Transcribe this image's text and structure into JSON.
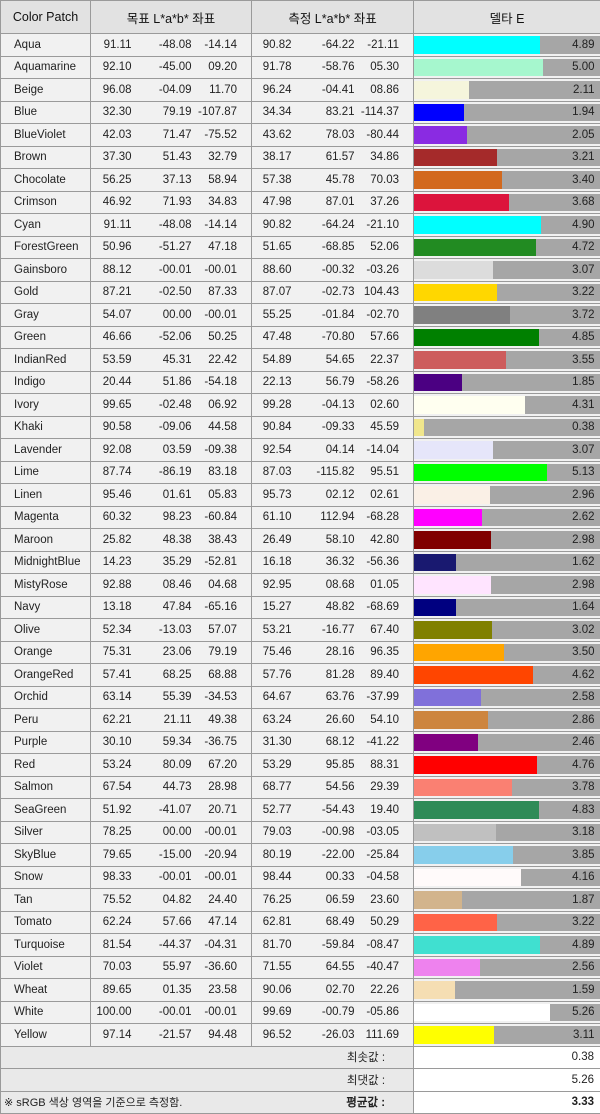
{
  "headers": {
    "patch": "Color Patch",
    "target": "목표 L*a*b* 좌표",
    "measured": "측정 L*a*b* 좌표",
    "delta": "델타 E"
  },
  "chart_data": {
    "type": "bar",
    "xlim": [
      0,
      5.5
    ],
    "rows": [
      {
        "name": "Aqua",
        "target": [
          "91.11",
          "-48.08",
          "-14.14"
        ],
        "measured": [
          "90.82",
          "-64.22",
          "-21.11"
        ],
        "delta": "4.89",
        "de": 4.89,
        "color": "#00FFFF"
      },
      {
        "name": "Aquamarine",
        "target": [
          "92.10",
          "-45.00",
          "09.20"
        ],
        "measured": [
          "91.78",
          "-58.76",
          "05.30"
        ],
        "delta": "5.00",
        "de": 5.0,
        "color": "#A6F7CE"
      },
      {
        "name": "Beige",
        "target": [
          "96.08",
          "-04.09",
          "11.70"
        ],
        "measured": [
          "96.24",
          "-04.41",
          "08.86"
        ],
        "delta": "2.11",
        "de": 2.11,
        "color": "#F5F5DC"
      },
      {
        "name": "Blue",
        "target": [
          "32.30",
          "79.19",
          "-107.87"
        ],
        "measured": [
          "34.34",
          "83.21",
          "-114.37"
        ],
        "delta": "1.94",
        "de": 1.94,
        "color": "#0000FF"
      },
      {
        "name": "BlueViolet",
        "target": [
          "42.03",
          "71.47",
          "-75.52"
        ],
        "measured": [
          "43.62",
          "78.03",
          "-80.44"
        ],
        "delta": "2.05",
        "de": 2.05,
        "color": "#8A2BE2"
      },
      {
        "name": "Brown",
        "target": [
          "37.30",
          "51.43",
          "32.79"
        ],
        "measured": [
          "38.17",
          "61.57",
          "34.86"
        ],
        "delta": "3.21",
        "de": 3.21,
        "color": "#A52A2A"
      },
      {
        "name": "Chocolate",
        "target": [
          "56.25",
          "37.13",
          "58.94"
        ],
        "measured": [
          "57.38",
          "45.78",
          "70.03"
        ],
        "delta": "3.40",
        "de": 3.4,
        "color": "#D2691E"
      },
      {
        "name": "Crimson",
        "target": [
          "46.92",
          "71.93",
          "34.83"
        ],
        "measured": [
          "47.98",
          "87.01",
          "37.26"
        ],
        "delta": "3.68",
        "de": 3.68,
        "color": "#DC143C"
      },
      {
        "name": "Cyan",
        "target": [
          "91.11",
          "-48.08",
          "-14.14"
        ],
        "measured": [
          "90.82",
          "-64.24",
          "-21.10"
        ],
        "delta": "4.90",
        "de": 4.9,
        "color": "#00FFFF"
      },
      {
        "name": "ForestGreen",
        "target": [
          "50.96",
          "-51.27",
          "47.18"
        ],
        "measured": [
          "51.65",
          "-68.85",
          "52.06"
        ],
        "delta": "4.72",
        "de": 4.72,
        "color": "#228B22"
      },
      {
        "name": "Gainsboro",
        "target": [
          "88.12",
          "-00.01",
          "-00.01"
        ],
        "measured": [
          "88.60",
          "-00.32",
          "-03.26"
        ],
        "delta": "3.07",
        "de": 3.07,
        "color": "#DCDCDC"
      },
      {
        "name": "Gold",
        "target": [
          "87.21",
          "-02.50",
          "87.33"
        ],
        "measured": [
          "87.07",
          "-02.73",
          "104.43"
        ],
        "delta": "3.22",
        "de": 3.22,
        "color": "#FFD700"
      },
      {
        "name": "Gray",
        "target": [
          "54.07",
          "00.00",
          "-00.01"
        ],
        "measured": [
          "55.25",
          "-01.84",
          "-02.70"
        ],
        "delta": "3.72",
        "de": 3.72,
        "color": "#808080"
      },
      {
        "name": "Green",
        "target": [
          "46.66",
          "-52.06",
          "50.25"
        ],
        "measured": [
          "47.48",
          "-70.80",
          "57.66"
        ],
        "delta": "4.85",
        "de": 4.85,
        "color": "#008000"
      },
      {
        "name": "IndianRed",
        "target": [
          "53.59",
          "45.31",
          "22.42"
        ],
        "measured": [
          "54.89",
          "54.65",
          "22.37"
        ],
        "delta": "3.55",
        "de": 3.55,
        "color": "#CD5C5C"
      },
      {
        "name": "Indigo",
        "target": [
          "20.44",
          "51.86",
          "-54.18"
        ],
        "measured": [
          "22.13",
          "56.79",
          "-58.26"
        ],
        "delta": "1.85",
        "de": 1.85,
        "color": "#4B0082"
      },
      {
        "name": "Ivory",
        "target": [
          "99.65",
          "-02.48",
          "06.92"
        ],
        "measured": [
          "99.28",
          "-04.13",
          "02.60"
        ],
        "delta": "4.31",
        "de": 4.31,
        "color": "#FFFFF0"
      },
      {
        "name": "Khaki",
        "target": [
          "90.58",
          "-09.06",
          "44.58"
        ],
        "measured": [
          "90.84",
          "-09.33",
          "45.59"
        ],
        "delta": "0.38",
        "de": 0.38,
        "color": "#F0E68C"
      },
      {
        "name": "Lavender",
        "target": [
          "92.08",
          "03.59",
          "-09.38"
        ],
        "measured": [
          "92.54",
          "04.14",
          "-14.04"
        ],
        "delta": "3.07",
        "de": 3.07,
        "color": "#E6E6FA"
      },
      {
        "name": "Lime",
        "target": [
          "87.74",
          "-86.19",
          "83.18"
        ],
        "measured": [
          "87.03",
          "-115.82",
          "95.51"
        ],
        "delta": "5.13",
        "de": 5.13,
        "color": "#00FF00"
      },
      {
        "name": "Linen",
        "target": [
          "95.46",
          "01.61",
          "05.83"
        ],
        "measured": [
          "95.73",
          "02.12",
          "02.61"
        ],
        "delta": "2.96",
        "de": 2.96,
        "color": "#FAF0E6"
      },
      {
        "name": "Magenta",
        "target": [
          "60.32",
          "98.23",
          "-60.84"
        ],
        "measured": [
          "61.10",
          "112.94",
          "-68.28"
        ],
        "delta": "2.62",
        "de": 2.62,
        "color": "#FF00FF"
      },
      {
        "name": "Maroon",
        "target": [
          "25.82",
          "48.38",
          "38.43"
        ],
        "measured": [
          "26.49",
          "58.10",
          "42.80"
        ],
        "delta": "2.98",
        "de": 2.98,
        "color": "#800000"
      },
      {
        "name": "MidnightBlue",
        "target": [
          "14.23",
          "35.29",
          "-52.81"
        ],
        "measured": [
          "16.18",
          "36.32",
          "-56.36"
        ],
        "delta": "1.62",
        "de": 1.62,
        "color": "#191970"
      },
      {
        "name": "MistyRose",
        "target": [
          "92.88",
          "08.46",
          "04.68"
        ],
        "measured": [
          "92.95",
          "08.68",
          "01.05"
        ],
        "delta": "2.98",
        "de": 2.98,
        "color": "#FFE4FF"
      },
      {
        "name": "Navy",
        "target": [
          "13.18",
          "47.84",
          "-65.16"
        ],
        "measured": [
          "15.27",
          "48.82",
          "-68.69"
        ],
        "delta": "1.64",
        "de": 1.64,
        "color": "#000080"
      },
      {
        "name": "Olive",
        "target": [
          "52.34",
          "-13.03",
          "57.07"
        ],
        "measured": [
          "53.21",
          "-16.77",
          "67.40"
        ],
        "delta": "3.02",
        "de": 3.02,
        "color": "#808000"
      },
      {
        "name": "Orange",
        "target": [
          "75.31",
          "23.06",
          "79.19"
        ],
        "measured": [
          "75.46",
          "28.16",
          "96.35"
        ],
        "delta": "3.50",
        "de": 3.5,
        "color": "#FFA500"
      },
      {
        "name": "OrangeRed",
        "target": [
          "57.41",
          "68.25",
          "68.88"
        ],
        "measured": [
          "57.76",
          "81.28",
          "89.40"
        ],
        "delta": "4.62",
        "de": 4.62,
        "color": "#FF4500"
      },
      {
        "name": "Orchid",
        "target": [
          "63.14",
          "55.39",
          "-34.53"
        ],
        "measured": [
          "64.67",
          "63.76",
          "-37.99"
        ],
        "delta": "2.58",
        "de": 2.58,
        "color": "#8070DA"
      },
      {
        "name": "Peru",
        "target": [
          "62.21",
          "21.11",
          "49.38"
        ],
        "measured": [
          "63.24",
          "26.60",
          "54.10"
        ],
        "delta": "2.86",
        "de": 2.86,
        "color": "#CD853F"
      },
      {
        "name": "Purple",
        "target": [
          "30.10",
          "59.34",
          "-36.75"
        ],
        "measured": [
          "31.30",
          "68.12",
          "-41.22"
        ],
        "delta": "2.46",
        "de": 2.46,
        "color": "#800080"
      },
      {
        "name": "Red",
        "target": [
          "53.24",
          "80.09",
          "67.20"
        ],
        "measured": [
          "53.29",
          "95.85",
          "88.31"
        ],
        "delta": "4.76",
        "de": 4.76,
        "color": "#FF0000"
      },
      {
        "name": "Salmon",
        "target": [
          "67.54",
          "44.73",
          "28.98"
        ],
        "measured": [
          "68.77",
          "54.56",
          "29.39"
        ],
        "delta": "3.78",
        "de": 3.78,
        "color": "#FA8072"
      },
      {
        "name": "SeaGreen",
        "target": [
          "51.92",
          "-41.07",
          "20.71"
        ],
        "measured": [
          "52.77",
          "-54.43",
          "19.40"
        ],
        "delta": "4.83",
        "de": 4.83,
        "color": "#2E8B57"
      },
      {
        "name": "Silver",
        "target": [
          "78.25",
          "00.00",
          "-00.01"
        ],
        "measured": [
          "79.03",
          "-00.98",
          "-03.05"
        ],
        "delta": "3.18",
        "de": 3.18,
        "color": "#C0C0C0"
      },
      {
        "name": "SkyBlue",
        "target": [
          "79.65",
          "-15.00",
          "-20.94"
        ],
        "measured": [
          "80.19",
          "-22.00",
          "-25.84"
        ],
        "delta": "3.85",
        "de": 3.85,
        "color": "#87CEEB"
      },
      {
        "name": "Snow",
        "target": [
          "98.33",
          "-00.01",
          "-00.01"
        ],
        "measured": [
          "98.44",
          "00.33",
          "-04.58"
        ],
        "delta": "4.16",
        "de": 4.16,
        "color": "#FFFAFA"
      },
      {
        "name": "Tan",
        "target": [
          "75.52",
          "04.82",
          "24.40"
        ],
        "measured": [
          "76.25",
          "06.59",
          "23.60"
        ],
        "delta": "1.87",
        "de": 1.87,
        "color": "#D2B48C"
      },
      {
        "name": "Tomato",
        "target": [
          "62.24",
          "57.66",
          "47.14"
        ],
        "measured": [
          "62.81",
          "68.49",
          "50.29"
        ],
        "delta": "3.22",
        "de": 3.22,
        "color": "#FF6347"
      },
      {
        "name": "Turquoise",
        "target": [
          "81.54",
          "-44.37",
          "-04.31"
        ],
        "measured": [
          "81.70",
          "-59.84",
          "-08.47"
        ],
        "delta": "4.89",
        "de": 4.89,
        "color": "#40E0D0"
      },
      {
        "name": "Violet",
        "target": [
          "70.03",
          "55.97",
          "-36.60"
        ],
        "measured": [
          "71.55",
          "64.55",
          "-40.47"
        ],
        "delta": "2.56",
        "de": 2.56,
        "color": "#EE82EE"
      },
      {
        "name": "Wheat",
        "target": [
          "89.65",
          "01.35",
          "23.58"
        ],
        "measured": [
          "90.06",
          "02.70",
          "22.26"
        ],
        "delta": "1.59",
        "de": 1.59,
        "color": "#F5DEB3"
      },
      {
        "name": "White",
        "target": [
          "100.00",
          "-00.01",
          "-00.01"
        ],
        "measured": [
          "99.69",
          "-00.79",
          "-05.86"
        ],
        "delta": "5.26",
        "de": 5.26,
        "color": "#FFFFFF"
      },
      {
        "name": "Yellow",
        "target": [
          "97.14",
          "-21.57",
          "94.48"
        ],
        "measured": [
          "96.52",
          "-26.03",
          "111.69"
        ],
        "delta": "3.11",
        "de": 3.11,
        "color": "#FFFF00"
      }
    ]
  },
  "summary": {
    "min_label": "최솟값 :",
    "min_value": "0.38",
    "max_label": "최댓값 :",
    "max_value": "5.26",
    "avg_label": "평균값 :",
    "avg_value": "3.33",
    "note": "※ sRGB 색상 영역을 기준으로 측정함."
  }
}
